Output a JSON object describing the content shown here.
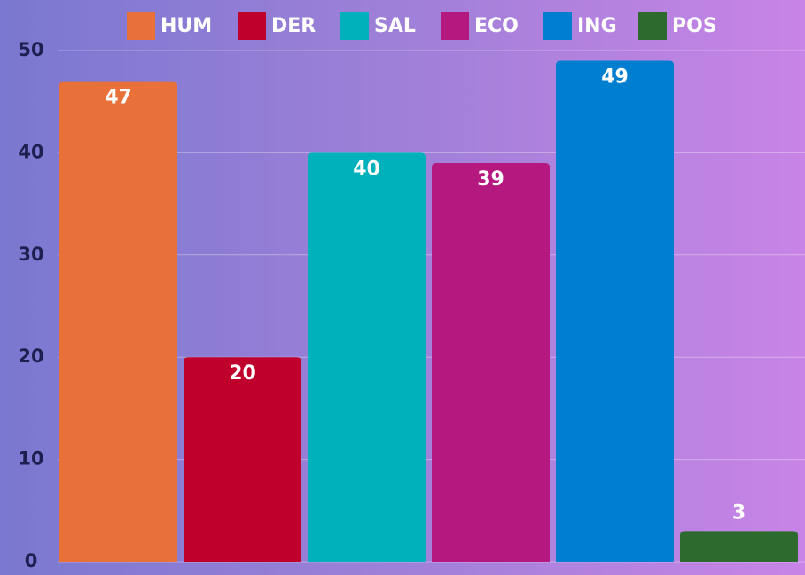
{
  "chart_data": {
    "type": "bar",
    "series": [
      {
        "name": "HUM",
        "color": "#e8713a",
        "values": [
          47
        ]
      },
      {
        "name": "DER",
        "color": "#c0002c",
        "values": [
          20
        ]
      },
      {
        "name": "SAL",
        "color": "#00b0bb",
        "values": [
          40
        ]
      },
      {
        "name": "ECO",
        "color": "#b5187f",
        "values": [
          39
        ]
      },
      {
        "name": "ING",
        "color": "#007fd0",
        "values": [
          49
        ]
      },
      {
        "name": "POS",
        "color": "#2d6a2d",
        "values": [
          3
        ]
      }
    ],
    "ylim": [
      0,
      50
    ],
    "yticks": [
      0,
      10,
      20,
      30,
      40,
      50
    ],
    "grid": true,
    "legend": "top"
  }
}
